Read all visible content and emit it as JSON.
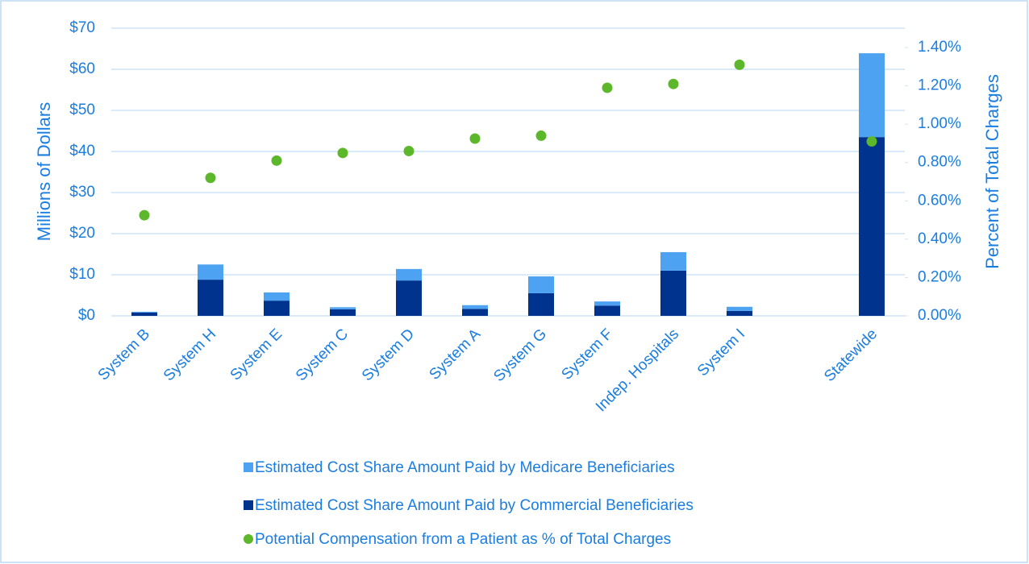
{
  "chart_data": {
    "type": "bar",
    "categories": [
      "System B",
      "System H",
      "System E",
      "System C",
      "System D",
      "System A",
      "System G",
      "System F",
      "Indep. Hospitals",
      "System I",
      null,
      "Statewide"
    ],
    "y_label": "Millions of Dollars",
    "y2_label": "Percent of Total Charges",
    "series": [
      {
        "name": "Estimated Cost Share Amount Paid by Medicare Beneficiaries",
        "type": "bar",
        "color": "#4da3f2",
        "values": [
          0.2,
          3.7,
          2.0,
          0.5,
          2.8,
          0.9,
          4.1,
          1.0,
          4.5,
          1.0,
          null,
          20.4
        ]
      },
      {
        "name": "Estimated Cost Share Amount Paid by Commercial Beneficiaries",
        "type": "bar",
        "color": "#00338d",
        "values": [
          0.8,
          8.8,
          3.7,
          1.6,
          8.6,
          1.7,
          5.5,
          2.5,
          11.0,
          1.2,
          null,
          43.5
        ]
      },
      {
        "name": "Potential Compensation from a Patient as % of Total Charges",
        "type": "scatter",
        "axis": "y2",
        "color": "#5cb82a",
        "values": [
          0.525,
          0.72,
          0.81,
          0.85,
          0.86,
          0.925,
          0.94,
          1.19,
          1.21,
          1.31,
          null,
          0.91
        ]
      }
    ],
    "ylim": [
      0,
      70
    ],
    "yticks": [
      {
        "value": 0,
        "label": "$0"
      },
      {
        "value": 10,
        "label": "$10"
      },
      {
        "value": 20,
        "label": "$20"
      },
      {
        "value": 30,
        "label": "$30"
      },
      {
        "value": 40,
        "label": "$40"
      },
      {
        "value": 50,
        "label": "$50"
      },
      {
        "value": 60,
        "label": "$60"
      },
      {
        "value": 70,
        "label": "$70"
      }
    ],
    "y2lim": [
      0,
      1.4
    ],
    "y2ticks": [
      {
        "value": 0,
        "label": "0.00%"
      },
      {
        "value": 0.2,
        "label": "0.20%"
      },
      {
        "value": 0.4,
        "label": "0.40%"
      },
      {
        "value": 0.6,
        "label": "0.60%"
      },
      {
        "value": 0.8,
        "label": "0.80%"
      },
      {
        "value": 1.0,
        "label": "1.00%"
      },
      {
        "value": 1.2,
        "label": "1.20%"
      },
      {
        "value": 1.4,
        "label": "1.40%"
      }
    ],
    "grid": true,
    "legend": "bottom"
  }
}
